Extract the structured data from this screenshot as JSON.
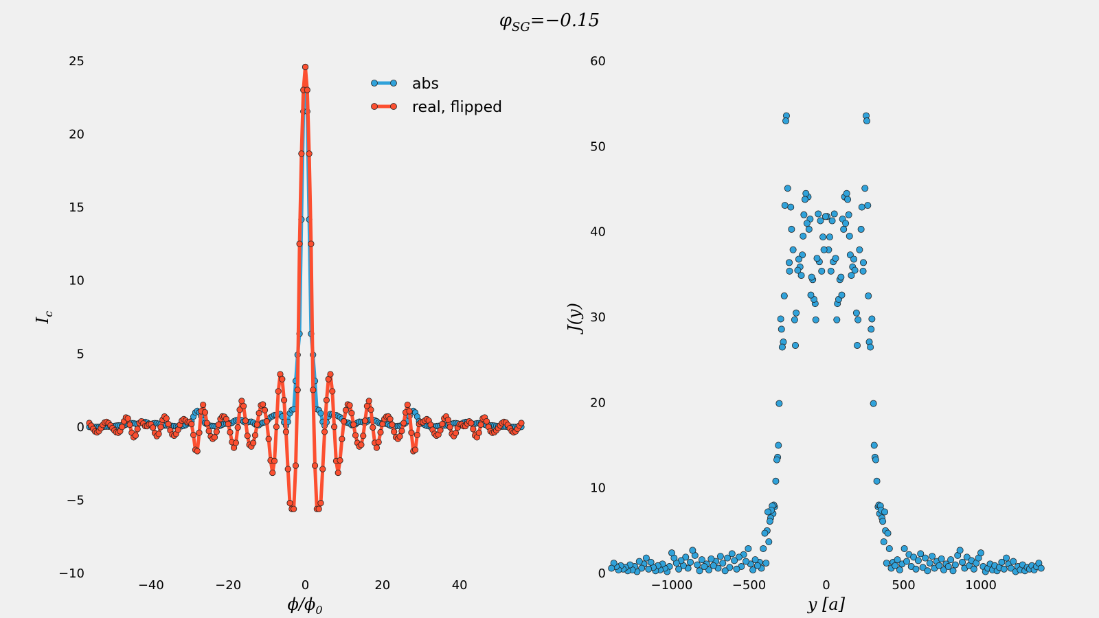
{
  "figure_title": "φSG=−0.15",
  "colors": {
    "abs": "#30a2da",
    "real": "#fc4f30",
    "background": "#f0f0f0"
  },
  "chart_data": [
    {
      "type": "line",
      "xlabel": "ϕ/ϕ0",
      "ylabel": "Ic",
      "xlim": [
        -56,
        56
      ],
      "ylim": [
        -10,
        25
      ],
      "xticks": [
        -40,
        -20,
        0,
        20,
        40
      ],
      "yticks": [
        -10,
        -5,
        0,
        5,
        10,
        15,
        20,
        25
      ],
      "grid": false,
      "legend_position": "upper right",
      "series": [
        {
          "name": "abs",
          "model": "|central lobe| + side-lobe ripple",
          "x_step": 0.5,
          "x_range": [
            -56,
            56
          ],
          "peak": 24.6
        },
        {
          "name": "real, flipped",
          "model": "oscillating central lobe + side-lobe ripple",
          "x_step": 0.5,
          "x_range": [
            -56,
            56
          ],
          "peak": 24.6,
          "min": -5.6
        }
      ]
    },
    {
      "type": "scatter",
      "xlabel": "y [a]",
      "ylabel": "J(y)",
      "xlim": [
        -1400,
        1400
      ],
      "ylim": [
        0,
        60
      ],
      "xticks": [
        -1000,
        -500,
        0,
        500,
        1000
      ],
      "yticks": [
        0,
        10,
        20,
        30,
        40,
        50,
        60
      ],
      "grid": false,
      "series": [
        {
          "name": "J",
          "symmetric_about_zero": true,
          "points_right_half": [
            [
              5,
              41.8
            ],
            [
              15,
              37.9
            ],
            [
              22,
              39.4
            ],
            [
              30,
              35.4
            ],
            [
              38,
              41.3
            ],
            [
              45,
              36.5
            ],
            [
              52,
              42.1
            ],
            [
              60,
              36.9
            ],
            [
              68,
              29.7
            ],
            [
              72,
              31.6
            ],
            [
              80,
              32.1
            ],
            [
              88,
              34.4
            ],
            [
              95,
              34.7
            ],
            [
              100,
              32.6
            ],
            [
              105,
              41.5
            ],
            [
              112,
              40.3
            ],
            [
              118,
              44.1
            ],
            [
              125,
              41.0
            ],
            [
              132,
              44.5
            ],
            [
              138,
              43.8
            ],
            [
              145,
              42.0
            ],
            [
              150,
              39.5
            ],
            [
              155,
              37.3
            ],
            [
              162,
              34.9
            ],
            [
              170,
              35.9
            ],
            [
              178,
              36.8
            ],
            [
              185,
              35.5
            ],
            [
              195,
              30.5
            ],
            [
              200,
              26.7
            ],
            [
              205,
              29.7
            ],
            [
              215,
              37.9
            ],
            [
              225,
              40.3
            ],
            [
              230,
              42.9
            ],
            [
              238,
              35.4
            ],
            [
              240,
              36.4
            ],
            [
              250,
              45.1
            ],
            [
              258,
              53.6
            ],
            [
              262,
              53.0
            ],
            [
              268,
              43.1
            ],
            [
              272,
              32.5
            ],
            [
              278,
              27.1
            ],
            [
              285,
              26.5
            ],
            [
              290,
              28.6
            ],
            [
              295,
              29.8
            ],
            [
              305,
              19.9
            ],
            [
              310,
              15.0
            ],
            [
              315,
              13.6
            ],
            [
              320,
              13.3
            ],
            [
              327,
              10.8
            ],
            [
              335,
              7.8
            ],
            [
              340,
              8.0
            ],
            [
              345,
              7.0
            ],
            [
              350,
              7.9
            ],
            [
              355,
              7.4
            ],
            [
              360,
              6.5
            ],
            [
              365,
              6.1
            ],
            [
              372,
              3.7
            ],
            [
              378,
              7.2
            ],
            [
              383,
              5.0
            ],
            [
              390,
              1.2
            ],
            [
              398,
              4.7
            ],
            [
              408,
              2.9
            ],
            [
              420,
              0.6
            ],
            [
              432,
              1.3
            ],
            [
              445,
              0.9
            ],
            [
              460,
              1.6
            ],
            [
              475,
              0.4
            ],
            [
              490,
              1.1
            ],
            [
              505,
              2.9
            ],
            [
              520,
              1.4
            ],
            [
              535,
              2.2
            ],
            [
              550,
              0.8
            ],
            [
              565,
              1.9
            ],
            [
              580,
              0.5
            ],
            [
              595,
              1.5
            ],
            [
              610,
              2.3
            ],
            [
              625,
              0.7
            ],
            [
              640,
              1.8
            ],
            [
              655,
              0.3
            ],
            [
              670,
              1.2
            ],
            [
              685,
              2.0
            ],
            [
              700,
              0.6
            ],
            [
              715,
              1.4
            ],
            [
              730,
              0.9
            ],
            [
              745,
              1.7
            ],
            [
              760,
              0.4
            ],
            [
              775,
              1.1
            ],
            [
              790,
              0.8
            ],
            [
              805,
              1.6
            ],
            [
              820,
              0.3
            ],
            [
              835,
              1.0
            ],
            [
              850,
              2.1
            ],
            [
              865,
              2.7
            ],
            [
              880,
              1.3
            ],
            [
              895,
              0.6
            ],
            [
              910,
              1.9
            ],
            [
              925,
              0.9
            ],
            [
              940,
              1.5
            ],
            [
              955,
              0.5
            ],
            [
              970,
              1.2
            ],
            [
              985,
              1.8
            ],
            [
              1000,
              2.4
            ],
            [
              1015,
              0.8
            ],
            [
              1030,
              0.2
            ],
            [
              1045,
              0.6
            ],
            [
              1060,
              1.1
            ],
            [
              1075,
              0.4
            ],
            [
              1090,
              0.9
            ],
            [
              1105,
              0.3
            ],
            [
              1120,
              0.7
            ],
            [
              1135,
              1.3
            ],
            [
              1150,
              0.5
            ],
            [
              1165,
              1.8
            ],
            [
              1180,
              1.1
            ],
            [
              1195,
              0.6
            ],
            [
              1210,
              1.4
            ],
            [
              1225,
              0.2
            ],
            [
              1240,
              0.8
            ],
            [
              1255,
              0.4
            ],
            [
              1270,
              1.0
            ],
            [
              1285,
              0.3
            ],
            [
              1300,
              0.7
            ],
            [
              1315,
              0.5
            ],
            [
              1330,
              0.9
            ],
            [
              1345,
              0.4
            ],
            [
              1360,
              0.8
            ],
            [
              1375,
              1.2
            ],
            [
              1390,
              0.6
            ]
          ]
        }
      ]
    }
  ]
}
